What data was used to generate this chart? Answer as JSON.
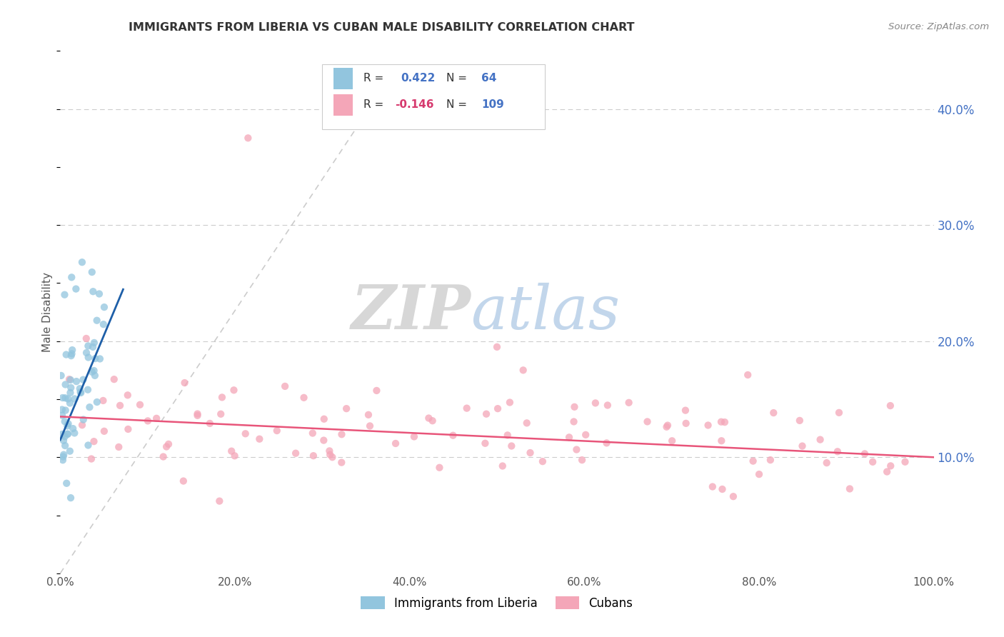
{
  "title": "IMMIGRANTS FROM LIBERIA VS CUBAN MALE DISABILITY CORRELATION CHART",
  "source_text": "Source: ZipAtlas.com",
  "ylabel": "Male Disability",
  "xlim": [
    0.0,
    1.0
  ],
  "ylim": [
    0.0,
    0.45
  ],
  "xticks": [
    0.0,
    0.2,
    0.4,
    0.6,
    0.8,
    1.0
  ],
  "xticklabels": [
    "0.0%",
    "20.0%",
    "40.0%",
    "60.0%",
    "80.0%",
    "100.0%"
  ],
  "yticks_right": [
    0.1,
    0.2,
    0.3,
    0.4
  ],
  "yticklabels_right": [
    "10.0%",
    "20.0%",
    "30.0%",
    "40.0%"
  ],
  "blue_R": 0.422,
  "blue_N": 64,
  "pink_R": -0.146,
  "pink_N": 109,
  "blue_color": "#92C5DE",
  "pink_color": "#F4A6B8",
  "blue_line_color": "#1E5FA8",
  "pink_line_color": "#E8557A",
  "legend_label_blue": "Immigrants from Liberia",
  "legend_label_pink": "Cubans",
  "watermark_zip": "ZIP",
  "watermark_atlas": "atlas",
  "background_color": "#ffffff",
  "grid_color": "#cccccc",
  "title_color": "#333333",
  "source_color": "#888888",
  "axis_label_color": "#555555",
  "tick_label_color": "#4472c4",
  "legend_R_color": "#4472c4",
  "legend_N_color": "#4472c4",
  "legend_neg_R_color": "#d63a6e"
}
